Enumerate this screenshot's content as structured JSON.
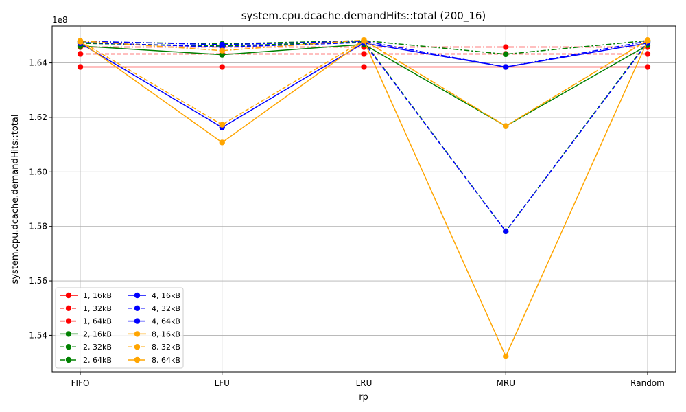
{
  "chart_data": {
    "type": "line",
    "title": "system.cpu.dcache.demandHits::total (200_16)",
    "xlabel": "rp",
    "ylabel": "system.cpu.dcache.demandHits::total",
    "scale_label": "1e8",
    "categories": [
      "FIFO",
      "LFU",
      "LRU",
      "MRU",
      "Random"
    ],
    "y_ticks": [
      1.54,
      1.56,
      1.58,
      1.6,
      1.62,
      1.64
    ],
    "y_tick_labels": [
      "1.54",
      "1.56",
      "1.58",
      "1.60",
      "1.62",
      "1.64"
    ],
    "ylim": [
      1.5265,
      1.6535
    ],
    "grid": true,
    "legend_position": "lower-left",
    "legend_columns": 2,
    "series": [
      {
        "name": "1, 16kB",
        "color": "#ff0000",
        "dash": "solid",
        "values": [
          1.6385,
          1.6385,
          1.6385,
          1.6385,
          1.6385
        ]
      },
      {
        "name": "1, 32kB",
        "color": "#ff0000",
        "dash": "dashed",
        "values": [
          1.6433,
          1.6433,
          1.6433,
          1.6433,
          1.6433
        ]
      },
      {
        "name": "1, 64kB",
        "color": "#ff0000",
        "dash": "dashdot",
        "values": [
          1.6458,
          1.6458,
          1.6458,
          1.6458,
          1.6458
        ]
      },
      {
        "name": "2, 16kB",
        "color": "#008000",
        "dash": "solid",
        "values": [
          1.6462,
          1.643,
          1.6468,
          1.6168,
          1.6465
        ]
      },
      {
        "name": "2, 32kB",
        "color": "#008000",
        "dash": "dashed",
        "values": [
          1.6472,
          1.6462,
          1.6478,
          1.5782,
          1.6478
        ]
      },
      {
        "name": "2, 64kB",
        "color": "#008000",
        "dash": "dashdot",
        "values": [
          1.6478,
          1.647,
          1.6482,
          1.6432,
          1.6482
        ]
      },
      {
        "name": "4, 16kB",
        "color": "#0000ff",
        "dash": "solid",
        "values": [
          1.6472,
          1.6163,
          1.6473,
          1.6385,
          1.6473
        ]
      },
      {
        "name": "4, 32kB",
        "color": "#0000ff",
        "dash": "dashed",
        "values": [
          1.6475,
          1.6458,
          1.6475,
          1.5782,
          1.6475
        ]
      },
      {
        "name": "4, 64kB",
        "color": "#0000ff",
        "dash": "dashdot",
        "values": [
          1.648,
          1.6467,
          1.648,
          1.6385,
          1.648
        ]
      },
      {
        "name": "8, 16kB",
        "color": "#ffa500",
        "dash": "solid",
        "values": [
          1.6478,
          1.6108,
          1.6481,
          1.5323,
          1.6481
        ]
      },
      {
        "name": "8, 32kB",
        "color": "#ffa500",
        "dash": "dashed",
        "values": [
          1.648,
          1.6173,
          1.6483,
          1.6168,
          1.6483
        ]
      },
      {
        "name": "8, 64kB",
        "color": "#ffa500",
        "dash": "dashdot",
        "values": [
          1.6481,
          1.6445,
          1.6484,
          1.6168,
          1.6484
        ]
      }
    ]
  }
}
